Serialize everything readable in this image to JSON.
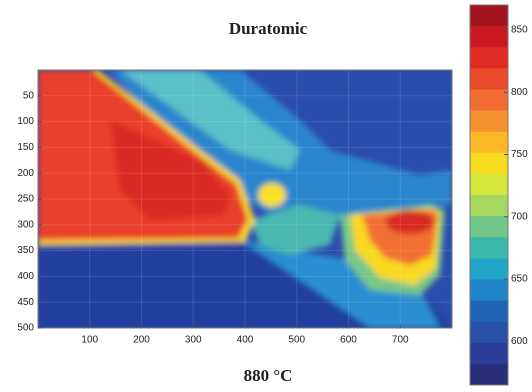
{
  "chart_data": {
    "type": "heatmap",
    "title": "Duratomic",
    "caption": "880 °C",
    "xlim": [
      0,
      800
    ],
    "xticks": [
      100,
      200,
      300,
      400,
      500,
      600,
      700
    ],
    "ylim": [
      0,
      500
    ],
    "yticks": [
      50,
      100,
      150,
      200,
      250,
      300,
      350,
      400,
      450,
      500
    ],
    "grid": true,
    "colorbar": {
      "clim": [
        565,
        870
      ],
      "ticks": [
        600,
        650,
        700,
        750,
        800,
        850
      ],
      "colors": [
        "#a3161f",
        "#c9181f",
        "#e02a22",
        "#e84a2a",
        "#f06c30",
        "#f5902e",
        "#fbb726",
        "#f7dc1e",
        "#d4e63c",
        "#a6d860",
        "#72c68a",
        "#3cb8aa",
        "#1fa6c8",
        "#2084c8",
        "#2064b8",
        "#2850a8",
        "#283e98",
        "#282e7a"
      ]
    }
  }
}
